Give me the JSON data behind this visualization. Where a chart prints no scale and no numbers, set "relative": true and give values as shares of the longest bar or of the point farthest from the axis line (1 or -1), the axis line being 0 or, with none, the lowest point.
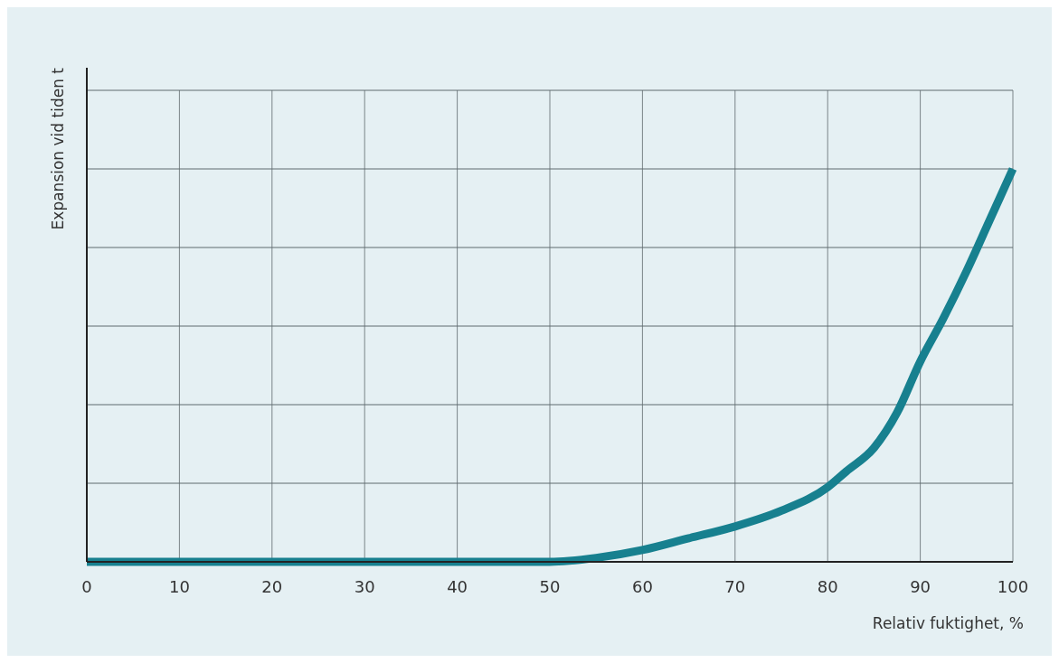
{
  "chart_data": {
    "type": "line",
    "xlabel": "Relativ fuktighet, %",
    "ylabel": "Expansion vid tiden t",
    "relative": true,
    "x": [
      0,
      10,
      20,
      30,
      40,
      50,
      55,
      60,
      65,
      70,
      75,
      80,
      82,
      85,
      87.5,
      90,
      92.5,
      95,
      97.5,
      100
    ],
    "series": [
      {
        "color": "#17808f",
        "values": [
          0,
          0,
          0,
          0,
          0,
          0,
          0.01,
          0.03,
          0.06,
          0.09,
          0.13,
          0.19,
          0.23,
          0.29,
          0.38,
          0.51,
          0.62,
          0.74,
          0.87,
          1
        ]
      }
    ],
    "xlim": [
      0,
      100
    ],
    "xticks": [
      0,
      10,
      20,
      30,
      40,
      50,
      60,
      70,
      80,
      90,
      100
    ],
    "grid": true,
    "marker": "none",
    "line_style": "solid"
  }
}
